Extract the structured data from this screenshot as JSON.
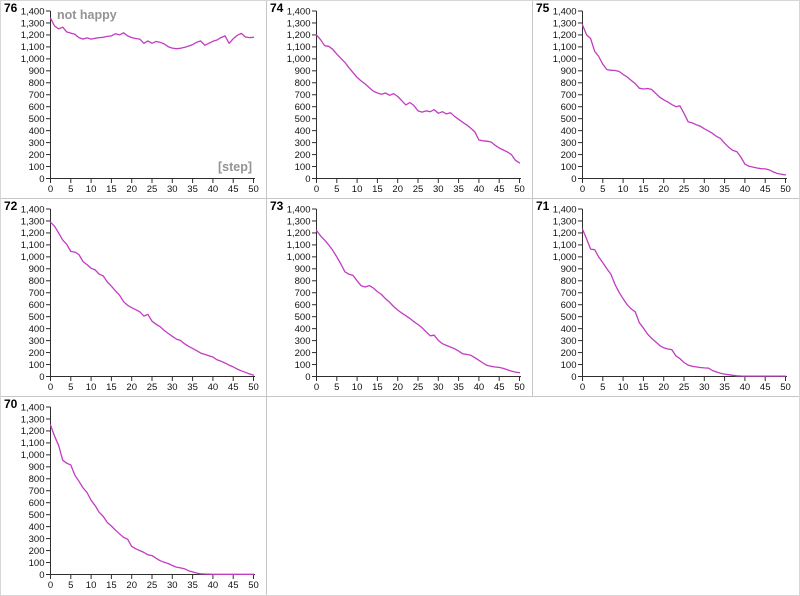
{
  "page": {
    "background": "#ffffff"
  },
  "chart_meta": {
    "type": "line",
    "grid": false,
    "legend": false,
    "x_axis": {
      "min": 0,
      "max": 50,
      "tick_values": [
        0,
        5,
        10,
        15,
        20,
        25,
        30,
        35,
        40,
        45,
        50
      ],
      "tick_labels": [
        "0",
        "5",
        "10",
        "15",
        "20",
        "25",
        "30",
        "35",
        "40",
        "45",
        "50"
      ]
    },
    "y_axis": {
      "min": 0,
      "max": 1400,
      "tick_values": [
        0,
        100,
        200,
        300,
        400,
        500,
        600,
        700,
        800,
        900,
        1000,
        1100,
        1200,
        1300,
        1400
      ],
      "tick_labels": [
        "0",
        "100",
        "200",
        "300",
        "400",
        "500",
        "600",
        "700",
        "800",
        "900",
        "1,000",
        "1,100",
        "1,200",
        "1,300",
        "1,400"
      ]
    },
    "line_color": "#c23cc2",
    "axis_color": "#2e2e2e",
    "tick_text_color": "#111111",
    "annotation_color": "#949494"
  },
  "chart_data": [
    {
      "type": "line",
      "panel_label": "76",
      "title": "not happy",
      "xlabel": "[step]",
      "x_range": [
        0,
        50
      ],
      "values": [
        1340,
        1275,
        1250,
        1265,
        1225,
        1215,
        1205,
        1178,
        1165,
        1175,
        1165,
        1172,
        1178,
        1180,
        1188,
        1192,
        1210,
        1200,
        1218,
        1192,
        1178,
        1170,
        1165,
        1130,
        1150,
        1130,
        1145,
        1138,
        1125,
        1102,
        1090,
        1085,
        1088,
        1096,
        1107,
        1119,
        1138,
        1150,
        1113,
        1130,
        1147,
        1158,
        1178,
        1192,
        1130,
        1168,
        1197,
        1214,
        1183,
        1178,
        1180
      ]
    },
    {
      "type": "line",
      "panel_label": "74",
      "title": "",
      "xlabel": "",
      "x_range": [
        0,
        50
      ],
      "values": [
        1200,
        1160,
        1110,
        1105,
        1080,
        1040,
        1005,
        970,
        925,
        885,
        845,
        815,
        790,
        760,
        730,
        715,
        705,
        715,
        695,
        710,
        685,
        650,
        615,
        635,
        610,
        565,
        555,
        565,
        558,
        575,
        545,
        558,
        540,
        550,
        520,
        495,
        470,
        448,
        420,
        390,
        322,
        315,
        312,
        305,
        278,
        255,
        238,
        222,
        200,
        152,
        130
      ]
    },
    {
      "type": "line",
      "panel_label": "75",
      "title": "",
      "xlabel": "",
      "x_range": [
        0,
        50
      ],
      "values": [
        1283,
        1200,
        1170,
        1062,
        1020,
        955,
        910,
        905,
        903,
        895,
        870,
        848,
        820,
        792,
        755,
        748,
        752,
        745,
        712,
        680,
        658,
        640,
        618,
        600,
        608,
        545,
        475,
        465,
        450,
        438,
        415,
        398,
        378,
        352,
        335,
        295,
        262,
        235,
        225,
        180,
        120,
        102,
        95,
        88,
        82,
        80,
        72,
        55,
        42,
        35,
        30
      ]
    },
    {
      "type": "line",
      "panel_label": "72",
      "title": "",
      "xlabel": "",
      "x_range": [
        0,
        50
      ],
      "values": [
        1290,
        1255,
        1200,
        1140,
        1105,
        1045,
        1040,
        1020,
        960,
        935,
        905,
        890,
        855,
        840,
        790,
        755,
        715,
        680,
        625,
        595,
        575,
        558,
        541,
        505,
        520,
        462,
        436,
        416,
        385,
        360,
        336,
        313,
        302,
        274,
        252,
        235,
        216,
        196,
        185,
        174,
        163,
        140,
        128,
        112,
        95,
        80,
        62,
        48,
        35,
        22,
        12
      ]
    },
    {
      "type": "line",
      "panel_label": "73",
      "title": "",
      "xlabel": "",
      "x_range": [
        0,
        50
      ],
      "values": [
        1220,
        1175,
        1140,
        1100,
        1055,
        1000,
        940,
        875,
        855,
        845,
        800,
        758,
        748,
        760,
        740,
        710,
        685,
        650,
        620,
        585,
        556,
        530,
        508,
        486,
        458,
        435,
        407,
        374,
        340,
        345,
        302,
        274,
        260,
        246,
        232,
        212,
        190,
        185,
        177,
        157,
        135,
        113,
        93,
        85,
        79,
        76,
        68,
        57,
        45,
        37,
        32
      ]
    },
    {
      "type": "line",
      "panel_label": "71",
      "title": "",
      "xlabel": "",
      "x_range": [
        0,
        50
      ],
      "values": [
        1230,
        1150,
        1065,
        1060,
        1000,
        950,
        900,
        855,
        770,
        705,
        650,
        600,
        565,
        540,
        450,
        405,
        355,
        320,
        290,
        260,
        240,
        230,
        225,
        172,
        150,
        117,
        95,
        85,
        80,
        75,
        72,
        70,
        50,
        38,
        28,
        20,
        15,
        10,
        6,
        4,
        3,
        3,
        3,
        3,
        3,
        3,
        3,
        3,
        3,
        3,
        3
      ]
    },
    {
      "type": "line",
      "panel_label": "70",
      "title": "",
      "xlabel": "",
      "x_range": [
        0,
        50
      ],
      "values": [
        1250,
        1155,
        1080,
        955,
        930,
        915,
        830,
        780,
        725,
        685,
        620,
        575,
        520,
        485,
        435,
        405,
        370,
        340,
        310,
        295,
        235,
        215,
        200,
        185,
        165,
        158,
        135,
        115,
        102,
        92,
        75,
        62,
        55,
        48,
        32,
        22,
        12,
        6,
        4,
        3,
        2,
        2,
        2,
        2,
        2,
        2,
        2,
        2,
        2,
        2,
        2
      ]
    }
  ]
}
